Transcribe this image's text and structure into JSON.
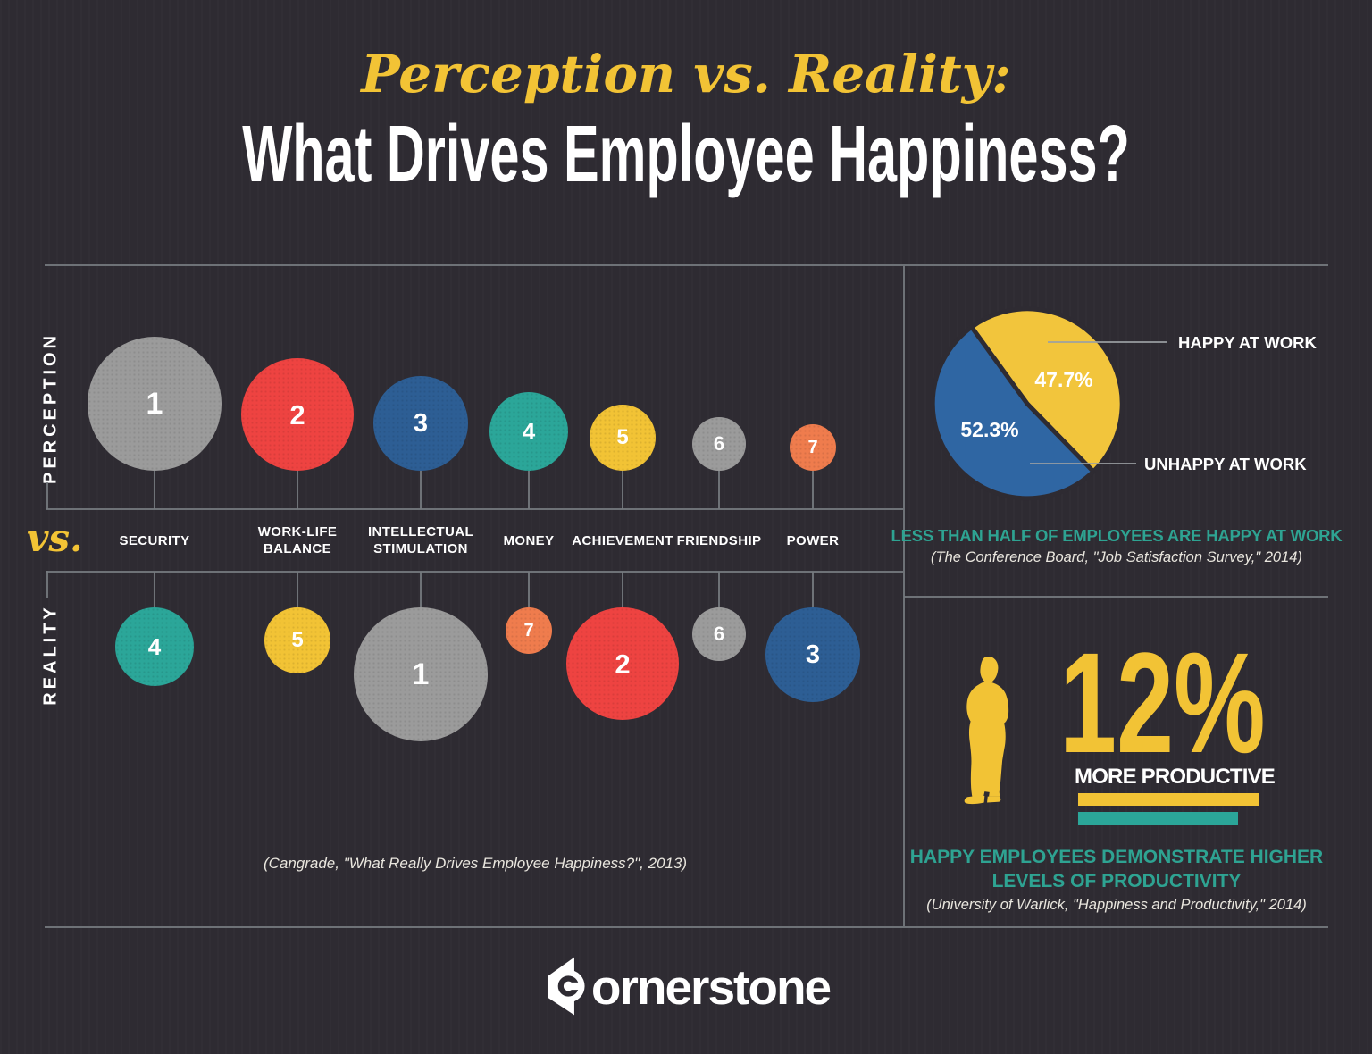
{
  "theme": {
    "background": "#2E2B32",
    "yellow": "#F2C335",
    "teal_text": "#2EA392",
    "line": "#757A7E"
  },
  "header": {
    "title_script": "Perception vs. Reality:",
    "title_main": "What Drives Employee Happiness?"
  },
  "chart_data": [
    {
      "type": "bubble",
      "title": "Perception vs. Reality ranking of what drives employee happiness",
      "row_top_label": "PERCEPTION",
      "row_bottom_label": "REALITY",
      "vs_label": "vs.",
      "rank_scale_note": "rank 1 = biggest bubble, rank 7 = smallest",
      "categories": [
        {
          "id": "security",
          "label_lines": [
            "SECURITY"
          ],
          "perception_rank": 1,
          "perception_color": "#9B9B9B",
          "reality_rank": 4,
          "reality_color": "#2BA699"
        },
        {
          "id": "work-life-balance",
          "label_lines": [
            "WORK-LIFE",
            "BALANCE"
          ],
          "perception_rank": 2,
          "perception_color": "#EE4341",
          "reality_rank": 5,
          "reality_color": "#F2C335"
        },
        {
          "id": "intellectual-stimulation",
          "label_lines": [
            "INTELLECTUAL",
            "STIMULATION"
          ],
          "perception_rank": 3,
          "perception_color": "#2D5E94",
          "reality_rank": 1,
          "reality_color": "#9B9B9B"
        },
        {
          "id": "money",
          "label_lines": [
            "MONEY"
          ],
          "perception_rank": 4,
          "perception_color": "#2BA699",
          "reality_rank": 7,
          "reality_color": "#EF7C4D"
        },
        {
          "id": "achievement",
          "label_lines": [
            "ACHIEVEMENT"
          ],
          "perception_rank": 5,
          "perception_color": "#F2C335",
          "reality_rank": 2,
          "reality_color": "#EE4341"
        },
        {
          "id": "friendship",
          "label_lines": [
            "FRIENDSHIP"
          ],
          "perception_rank": 6,
          "perception_color": "#9B9B9B",
          "reality_rank": 6,
          "reality_color": "#9B9B9B"
        },
        {
          "id": "power",
          "label_lines": [
            "POWER"
          ],
          "perception_rank": 7,
          "perception_color": "#EF7C4D",
          "reality_rank": 3,
          "reality_color": "#2D5E94"
        }
      ],
      "source": "(Cangrade, \"What Really Drives Employee Happiness?\", 2013)"
    },
    {
      "type": "pie",
      "start_angle_deg": -36,
      "slices": [
        {
          "id": "happy",
          "label": "HAPPY AT WORK",
          "value": 47.7,
          "value_label": "47.7%",
          "color": "#F2C53C"
        },
        {
          "id": "unhappy",
          "label": "UNHAPPY AT WORK",
          "value": 52.3,
          "value_label": "52.3%",
          "color": "#2F66A3"
        }
      ],
      "headline": "LESS THAN HALF OF EMPLOYEES ARE HAPPY AT WORK",
      "source": "(The Conference Board, \"Job Satisfaction Survey,\" 2014)"
    },
    {
      "type": "stat",
      "value": "12%",
      "label": "MORE PRODUCTIVE",
      "headline_line1": "HAPPY EMPLOYEES DEMONSTRATE HIGHER",
      "headline_line2": "LEVELS OF PRODUCTIVITY",
      "source": "(University of Warlick, \"Happiness and Productivity,\" 2014)"
    }
  ],
  "footer": {
    "logo_text": "cornerstone"
  }
}
